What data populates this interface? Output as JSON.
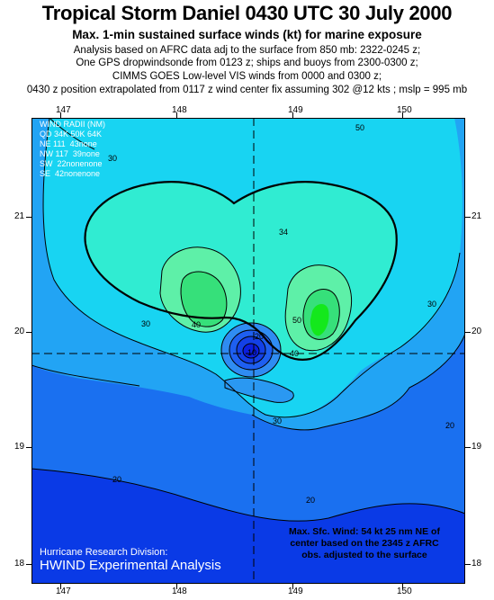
{
  "title": "Tropical Storm Daniel  0430 UTC 30 July 2000",
  "subtitle": "Max. 1-min sustained surface winds (kt) for marine exposure",
  "info_lines": [
    "Analysis based on AFRC data adj to the surface from 850 mb: 2322-0245 z;",
    "One GPS dropwindsonde from 0123 z; ships and buoys from 2300-0300 z;",
    "CIMMS GOES Low-level VIS winds from 0000 and 0300 z;",
    "0430 z position extrapolated from 0117 z wind center fix assuming 302 @12 kts ; mslp = 995 mb"
  ],
  "axes": {
    "x_ticks": [
      "147",
      "148",
      "149",
      "150"
    ],
    "y_ticks": [
      "21",
      "20",
      "19",
      "18"
    ]
  },
  "wind_radii": {
    "header": "WIND RADII (NM)",
    "columns": "QD 34K 50K 64K",
    "rows": [
      "NE 111  43none",
      "NW 117  39none",
      "SW  22nonenone",
      "SE  42nonenone"
    ]
  },
  "contour_labels": [
    "50",
    "30",
    "34",
    "40",
    "50",
    "40",
    "30",
    "30",
    "20",
    "20",
    "20",
    "30",
    "20",
    "10"
  ],
  "max_wind_note": [
    "Max. Sfc. Wind: 54 kt 25 nm NE of",
    "center based on the 2345 z AFRC",
    "obs. adjusted to the surface"
  ],
  "credit": {
    "line1": "Hurricane Research Division:",
    "line2": "HWIND Experimental Analysis"
  },
  "colors": {
    "deep_blue": "#0a2ee0",
    "blue": "#1e6cf2",
    "light_blue": "#2aa8f5",
    "cyan": "#1ad8f2",
    "aqua_green": "#32f0c0",
    "green": "#2ee070",
    "bright_green": "#18e818"
  }
}
